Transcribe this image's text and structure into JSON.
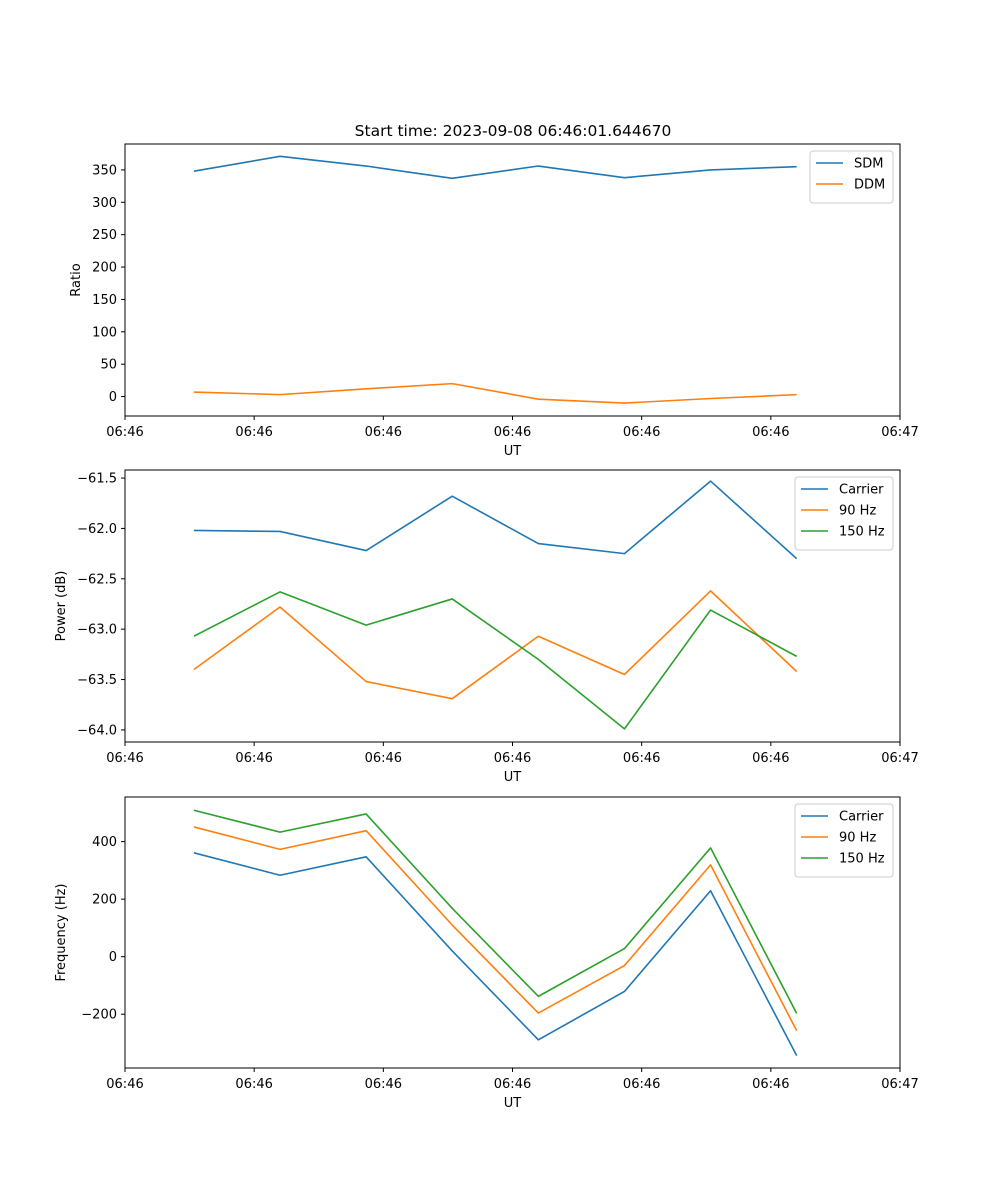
{
  "title": "Start time: 2023-09-08 06:46:01.644670",
  "chart_data": [
    {
      "type": "line",
      "name": "ratio",
      "xlabel": "UT",
      "ylabel": "Ratio",
      "x": [
        1,
        2,
        3,
        4,
        5,
        6,
        7,
        8
      ],
      "xlim": [
        0.2,
        9.2
      ],
      "xticks": [
        0.2,
        1.7,
        3.2,
        4.7,
        6.2,
        7.7,
        9.2
      ],
      "xtick_labels": [
        "06:46",
        "06:46",
        "06:46",
        "06:46",
        "06:46",
        "06:46",
        "06:47"
      ],
      "ylim": [
        -30,
        390
      ],
      "yticks": [
        0,
        50,
        100,
        150,
        200,
        250,
        300,
        350
      ],
      "ytick_labels": [
        "0",
        "50",
        "100",
        "150",
        "200",
        "250",
        "300",
        "350"
      ],
      "legend_position": "top-right",
      "series": [
        {
          "name": "SDM",
          "color": "#1f77b4",
          "values": [
            348,
            371,
            356,
            337,
            356,
            338,
            350,
            355
          ]
        },
        {
          "name": "DDM",
          "color": "#ff7f0e",
          "values": [
            7,
            3,
            12,
            20,
            -4,
            -10,
            -3,
            3
          ]
        }
      ]
    },
    {
      "type": "line",
      "name": "power",
      "xlabel": "UT",
      "ylabel": "Power (dB)",
      "x": [
        1,
        2,
        3,
        4,
        5,
        6,
        7,
        8
      ],
      "xlim": [
        0.2,
        9.2
      ],
      "xticks": [
        0.2,
        1.7,
        3.2,
        4.7,
        6.2,
        7.7,
        9.2
      ],
      "xtick_labels": [
        "06:46",
        "06:46",
        "06:46",
        "06:46",
        "06:46",
        "06:46",
        "06:47"
      ],
      "ylim": [
        -64.12,
        -61.42
      ],
      "yticks": [
        -64.0,
        -63.5,
        -63.0,
        -62.5,
        -62.0,
        -61.5
      ],
      "ytick_labels": [
        "−64.0",
        "−63.5",
        "−63.0",
        "−62.5",
        "−62.0",
        "−61.5"
      ],
      "legend_position": "top-right",
      "series": [
        {
          "name": "Carrier",
          "color": "#1f77b4",
          "values": [
            -62.02,
            -62.03,
            -62.22,
            -61.68,
            -62.15,
            -62.25,
            -61.53,
            -62.3
          ]
        },
        {
          "name": "90 Hz",
          "color": "#ff7f0e",
          "values": [
            -63.4,
            -62.78,
            -63.52,
            -63.69,
            -63.07,
            -63.45,
            -62.62,
            -63.42
          ]
        },
        {
          "name": "150 Hz",
          "color": "#2ca02c",
          "values": [
            -63.07,
            -62.63,
            -62.96,
            -62.7,
            -63.3,
            -63.99,
            -62.81,
            -63.27
          ]
        }
      ]
    },
    {
      "type": "line",
      "name": "frequency",
      "xlabel": "UT",
      "ylabel": "Frequency (Hz)",
      "x": [
        1,
        2,
        3,
        4,
        5,
        6,
        7,
        8
      ],
      "xlim": [
        0.2,
        9.2
      ],
      "xticks": [
        0.2,
        1.7,
        3.2,
        4.7,
        6.2,
        7.7,
        9.2
      ],
      "xtick_labels": [
        "06:46",
        "06:46",
        "06:46",
        "06:46",
        "06:46",
        "06:46",
        "06:47"
      ],
      "ylim": [
        -387,
        555
      ],
      "yticks": [
        -200,
        0,
        200,
        400
      ],
      "ytick_labels": [
        "−200",
        "0",
        "200",
        "400"
      ],
      "legend_position": "top-right",
      "series": [
        {
          "name": "Carrier",
          "color": "#1f77b4",
          "values": [
            361,
            283,
            347,
            20,
            -289,
            -121,
            229,
            -344
          ]
        },
        {
          "name": "90 Hz",
          "color": "#ff7f0e",
          "values": [
            451,
            373,
            438,
            110,
            -196,
            -31,
            319,
            -257
          ]
        },
        {
          "name": "150 Hz",
          "color": "#2ca02c",
          "values": [
            509,
            433,
            496,
            168,
            -138,
            28,
            378,
            -197
          ]
        }
      ]
    }
  ]
}
